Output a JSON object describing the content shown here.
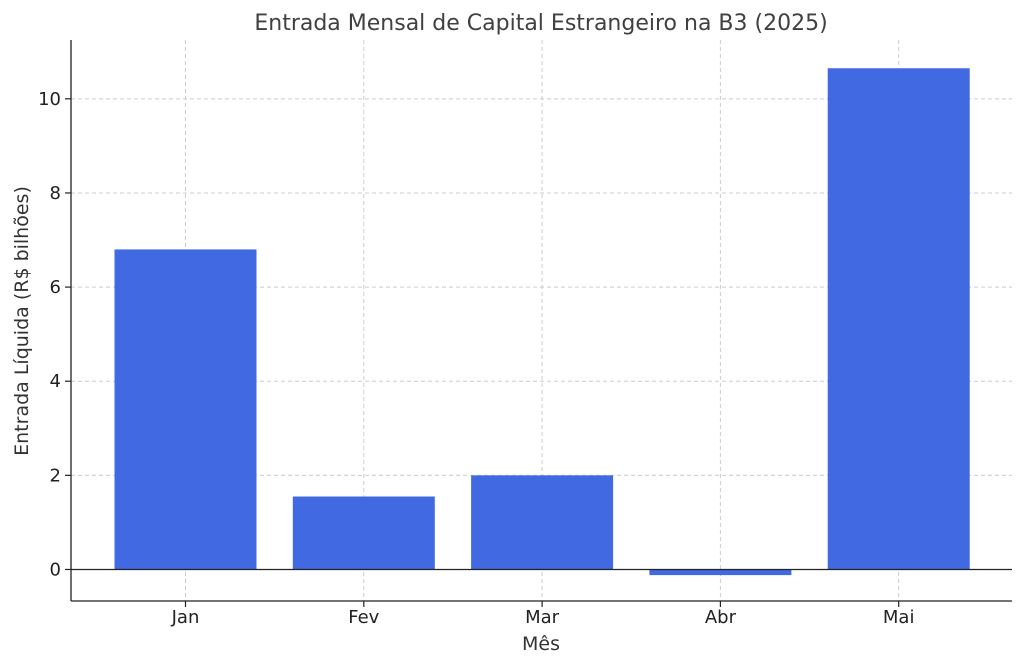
{
  "chart_data": {
    "type": "bar",
    "title": "Entrada Mensal de Capital Estrangeiro na B3 (2025)",
    "xlabel": "Mês",
    "ylabel": "Entrada Líquida (R$ bilhões)",
    "categories": [
      "Jan",
      "Fev",
      "Mar",
      "Abr",
      "Mai"
    ],
    "values": [
      6.8,
      1.55,
      2.0,
      -0.12,
      10.65
    ],
    "ylim": [
      -0.67,
      11.25
    ],
    "yticks": [
      0,
      2,
      4,
      6,
      8,
      10
    ],
    "grid": true,
    "bar_color": "#4169e1"
  }
}
